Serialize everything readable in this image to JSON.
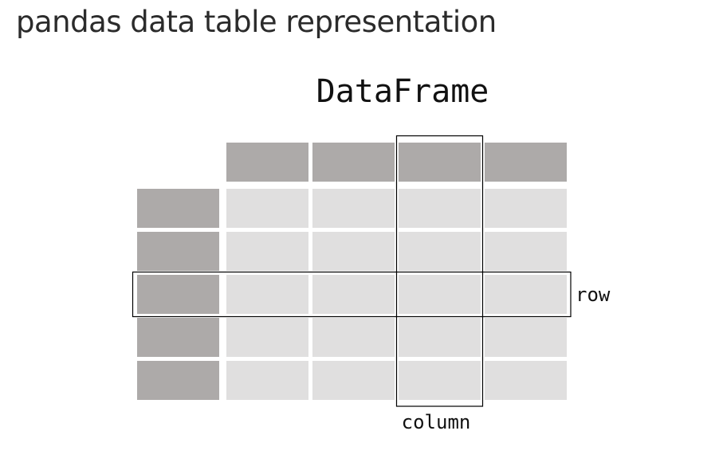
{
  "page": {
    "heading": "pandas data table representation"
  },
  "diagram": {
    "title": "DataFrame",
    "row_label": "row",
    "column_label": "column",
    "grid": {
      "header_columns": 4,
      "index_rows": 5
    },
    "highlight": {
      "row_index": 2,
      "column_index": 2
    },
    "colors": {
      "header": "#adaaa9",
      "index": "#adaaa9",
      "cell": "#e0dfdf",
      "outline": "#000000",
      "background": "#ffffff"
    }
  }
}
